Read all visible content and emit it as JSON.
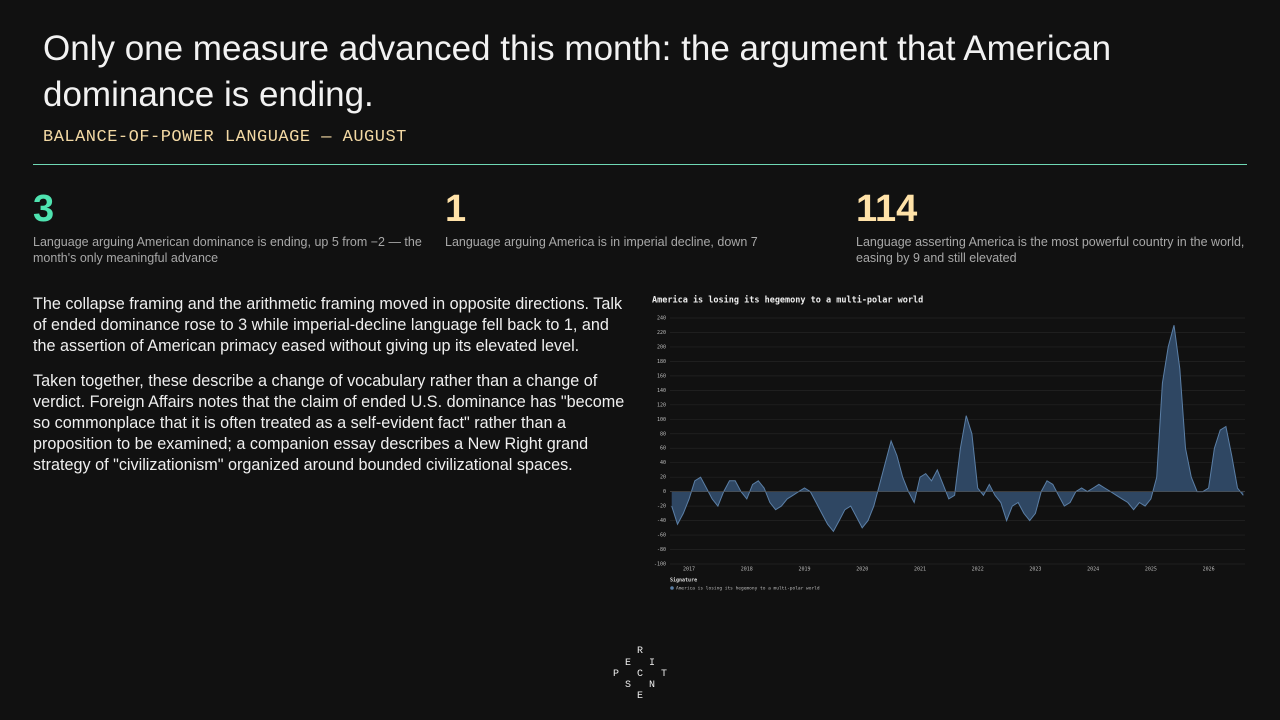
{
  "header": {
    "title": "Only one measure advanced this month: the argument that American dominance is ending.",
    "subtitle": "BALANCE-OF-POWER LANGUAGE — AUGUST"
  },
  "stats": [
    {
      "value": 3,
      "color": "#4fe3b0",
      "description": "Language arguing American dominance is ending, up 5 from −2 — the month's only meaningful advance"
    },
    {
      "value": 1,
      "color": "#ffe2a8",
      "description": "Language arguing America is in imperial decline, down 7"
    },
    {
      "value": 114,
      "color": "#ffe2a8",
      "description": "Language asserting America is the most powerful country in the world, easing by 9 and still elevated"
    }
  ],
  "body": {
    "paragraphs": [
      "The collapse framing and the arithmetic framing moved in opposite directions. Talk of ended dominance rose to 3 while imperial-decline language fell back to 1, and the assertion of American primacy eased without giving up its elevated level.",
      "Taken together, these describe a change of vocabulary rather than a change of verdict. Foreign Affairs notes that the claim of ended U.S. dominance has \"become so commonplace that it is often treated as a self-evident fact\" rather than a proposition to be examined; a companion essay describes a New Right grand strategy of \"civilizationism\" organized around bounded civilizational spaces."
    ]
  },
  "chart_data": {
    "type": "area",
    "title": "America is losing its hegemony to a multi-polar world",
    "legend_title": "Signature",
    "grid": true,
    "x": [
      2016.7,
      2016.8,
      2016.9,
      2017.0,
      2017.1,
      2017.2,
      2017.3,
      2017.4,
      2017.5,
      2017.6,
      2017.7,
      2017.8,
      2017.9,
      2018.0,
      2018.1,
      2018.2,
      2018.3,
      2018.4,
      2018.5,
      2018.6,
      2018.7,
      2018.8,
      2018.9,
      2019.0,
      2019.1,
      2019.2,
      2019.3,
      2019.4,
      2019.5,
      2019.6,
      2019.7,
      2019.8,
      2019.9,
      2020.0,
      2020.1,
      2020.2,
      2020.3,
      2020.4,
      2020.5,
      2020.6,
      2020.7,
      2020.8,
      2020.9,
      2021.0,
      2021.1,
      2021.2,
      2021.3,
      2021.4,
      2021.5,
      2021.6,
      2021.7,
      2021.8,
      2021.9,
      2022.0,
      2022.1,
      2022.2,
      2022.3,
      2022.4,
      2022.5,
      2022.6,
      2022.7,
      2022.8,
      2022.9,
      2023.0,
      2023.1,
      2023.2,
      2023.3,
      2023.4,
      2023.5,
      2023.6,
      2023.7,
      2023.8,
      2023.9,
      2024.0,
      2024.1,
      2024.2,
      2024.3,
      2024.4,
      2024.5,
      2024.6,
      2024.7,
      2024.8,
      2024.9,
      2025.0,
      2025.1,
      2025.2,
      2025.3,
      2025.4,
      2025.5,
      2025.6,
      2025.7,
      2025.8,
      2025.9,
      2026.0,
      2026.1,
      2026.2,
      2026.3,
      2026.4,
      2026.5,
      2026.6
    ],
    "series": [
      {
        "name": "America is losing its hegemony to a multi-polar world",
        "color": "#5b7fa6",
        "fill": "#2f4763",
        "values": [
          -20,
          -45,
          -30,
          -10,
          15,
          20,
          5,
          -10,
          -20,
          0,
          15,
          15,
          0,
          -10,
          10,
          15,
          5,
          -15,
          -25,
          -20,
          -10,
          -5,
          0,
          5,
          0,
          -15,
          -30,
          -45,
          -55,
          -40,
          -25,
          -20,
          -35,
          -50,
          -40,
          -20,
          10,
          40,
          70,
          50,
          20,
          0,
          -15,
          20,
          25,
          15,
          30,
          10,
          -10,
          -5,
          60,
          105,
          80,
          5,
          -5,
          10,
          -5,
          -15,
          -40,
          -20,
          -15,
          -30,
          -40,
          -30,
          0,
          15,
          10,
          -5,
          -20,
          -15,
          0,
          5,
          0,
          5,
          10,
          5,
          0,
          -5,
          -10,
          -15,
          -25,
          -15,
          -20,
          -10,
          20,
          150,
          200,
          230,
          170,
          60,
          20,
          0,
          0,
          5,
          60,
          85,
          90,
          50,
          5,
          -5
        ]
      }
    ],
    "xlim": [
      2016.67,
      2026.63
    ],
    "xticks": [
      2017,
      2018,
      2019,
      2020,
      2021,
      2022,
      2023,
      2024,
      2025,
      2026
    ],
    "ylim": [
      -100,
      240
    ],
    "yticks": [
      -100,
      -80,
      -60,
      -40,
      -20,
      0,
      20,
      40,
      60,
      80,
      100,
      120,
      140,
      160,
      180,
      200,
      220,
      240
    ]
  },
  "logo": [
    "R",
    "E",
    "I",
    "P",
    "C",
    "T",
    "S",
    "N",
    "E"
  ]
}
